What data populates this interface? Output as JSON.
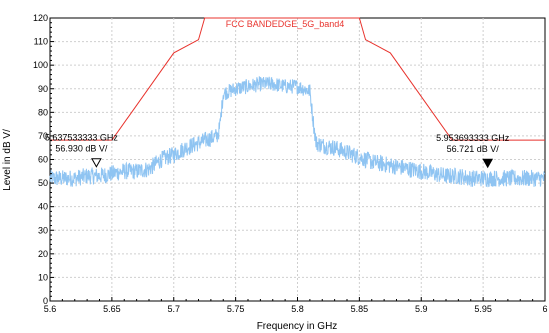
{
  "chart_data": {
    "type": "line",
    "title": "",
    "xlabel": "Frequency in GHz",
    "ylabel": "Level in dB   V/",
    "xlim": [
      5.6,
      6.0
    ],
    "ylim": [
      0,
      120
    ],
    "x_ticks": [
      "5.6",
      "5.65",
      "5.7",
      "5.75",
      "5.8",
      "5.85",
      "5.9",
      "5.95",
      "6"
    ],
    "y_ticks": [
      "0",
      "10",
      "20",
      "30",
      "40",
      "50",
      "60",
      "70",
      "80",
      "90",
      "100",
      "110",
      "120"
    ],
    "grid": true,
    "limit_line": {
      "name": "FCC BANDEDGE_5G_band4",
      "color": "#e8332d",
      "points": [
        [
          5.6,
          68.2
        ],
        [
          5.65,
          68.2
        ],
        [
          5.7,
          105.2
        ],
        [
          5.72,
          110.8
        ],
        [
          5.725,
          122.2
        ],
        [
          5.85,
          122.2
        ],
        [
          5.855,
          110.8
        ],
        [
          5.875,
          105.2
        ],
        [
          5.925,
          68.2
        ],
        [
          6.0,
          68.2
        ]
      ]
    },
    "series": [
      {
        "name": "",
        "color": "#8fc4f2",
        "x": [
          5.6,
          5.61,
          5.62,
          5.63,
          5.64,
          5.65,
          5.66,
          5.67,
          5.68,
          5.69,
          5.7,
          5.71,
          5.72,
          5.73,
          5.735,
          5.737,
          5.74,
          5.745,
          5.75,
          5.76,
          5.77,
          5.78,
          5.79,
          5.8,
          5.81,
          5.813,
          5.815,
          5.82,
          5.83,
          5.84,
          5.85,
          5.86,
          5.87,
          5.88,
          5.89,
          5.9,
          5.91,
          5.92,
          5.93,
          5.94,
          5.95,
          5.96,
          5.97,
          5.98,
          5.99,
          6.0
        ],
        "y": [
          52,
          52,
          52,
          53,
          53,
          54,
          55,
          55,
          56,
          60,
          62,
          65,
          67,
          69,
          70,
          73,
          88,
          89,
          90,
          91,
          92,
          92,
          91,
          91,
          89,
          75,
          67,
          66,
          65,
          63,
          61,
          59,
          58,
          57,
          56,
          55,
          54,
          53,
          53,
          52,
          52,
          52,
          52,
          52,
          52,
          52
        ]
      }
    ],
    "markers": [
      {
        "freq_label": "5.637533333 GHz",
        "level_label": "56.930 dB   V/",
        "x": 5.6375,
        "y": 56.93,
        "filled": false
      },
      {
        "freq_label": "5.953693333 GHz",
        "level_label": "56.721 dB   V/",
        "x": 5.9537,
        "y": 56.72,
        "filled": true
      }
    ]
  }
}
